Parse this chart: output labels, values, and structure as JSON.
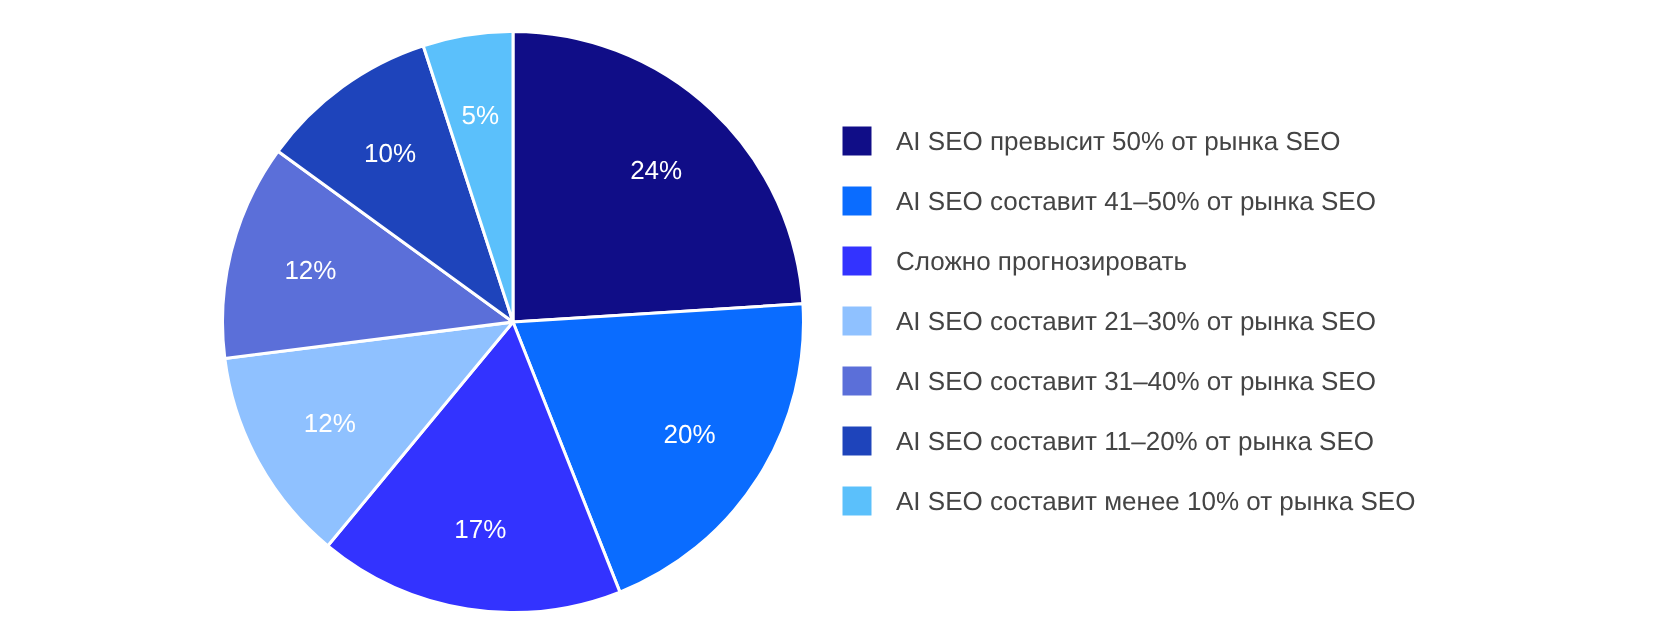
{
  "chart_data": {
    "type": "pie",
    "categories": [
      "AI SEO превысит 50% от рынка SEO",
      "AI SEO составит 41–50% от рынка SEO",
      "Сложно прогнозировать",
      "AI SEO составит 21–30% от рынка SEO",
      "AI SEO составит 31–40% от рынка SEO",
      "AI SEO составит 11–20% от рынка SEO",
      "AI SEO составит менее 10% от рынка SEO"
    ],
    "values": [
      24,
      20,
      17,
      12,
      12,
      10,
      5
    ],
    "value_labels": [
      "24%",
      "20%",
      "17%",
      "12%",
      "12%",
      "10%",
      "5%"
    ],
    "colors": [
      "#100d87",
      "#0a6cff",
      "#3333ff",
      "#8fc1ff",
      "#5b6fd9",
      "#1e44bb",
      "#5bc0fb"
    ],
    "legend": "right"
  }
}
